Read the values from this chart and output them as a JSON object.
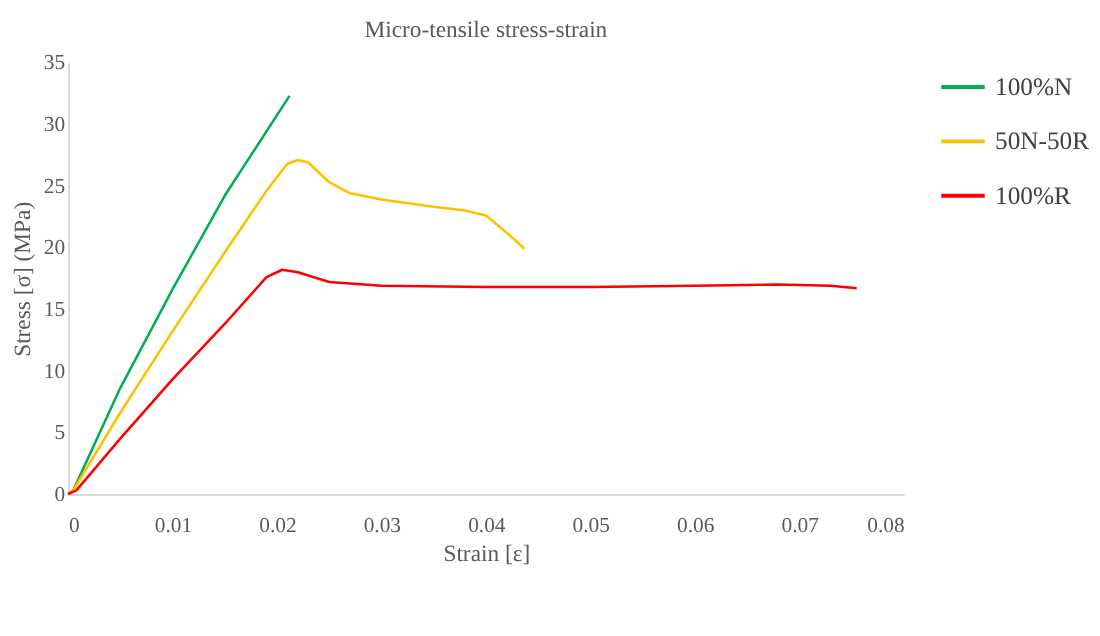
{
  "chart_data": {
    "type": "line",
    "title": "Micro-tensile stress-strain",
    "xlabel": "Strain [ε]",
    "ylabel": "Stress [σ] (MPa)",
    "xlim": [
      0,
      0.08
    ],
    "xticks": [
      0,
      0.01,
      0.02,
      0.03,
      0.04,
      0.05,
      0.06,
      0.07,
      0.08
    ],
    "ylim": [
      0,
      35
    ],
    "yticks": [
      0,
      5,
      10,
      15,
      20,
      25,
      30,
      35
    ],
    "grid": false,
    "legend": "top right",
    "line_style": "solid",
    "marker": "none",
    "series": [
      {
        "name": "100%N",
        "color": "#00b050",
        "x": [
          0,
          0.0005,
          0.005,
          0.01,
          0.015,
          0.0212
        ],
        "values": [
          0,
          0.3,
          8.6,
          16.6,
          24.2,
          32.3
        ]
      },
      {
        "name": "50N-50R",
        "color": "#ffc000",
        "x": [
          0,
          0.0005,
          0.005,
          0.01,
          0.015,
          0.019,
          0.021,
          0.022,
          0.023,
          0.025,
          0.027,
          0.03,
          0.035,
          0.038,
          0.04,
          0.042,
          0.0437
        ],
        "values": [
          0,
          0.3,
          6.6,
          13.2,
          19.6,
          24.6,
          26.8,
          27.1,
          26.9,
          25.3,
          24.4,
          23.9,
          23.3,
          23.0,
          22.6,
          21.2,
          19.9
        ]
      },
      {
        "name": "100%R",
        "color": "#ff0000",
        "x": [
          0,
          0.0008,
          0.005,
          0.01,
          0.015,
          0.019,
          0.0205,
          0.022,
          0.025,
          0.03,
          0.04,
          0.05,
          0.06,
          0.068,
          0.073,
          0.0755
        ],
        "values": [
          0,
          0.3,
          4.5,
          9.3,
          13.8,
          17.6,
          18.2,
          18.0,
          17.2,
          16.9,
          16.8,
          16.8,
          16.9,
          17.0,
          16.9,
          16.7
        ]
      }
    ]
  }
}
